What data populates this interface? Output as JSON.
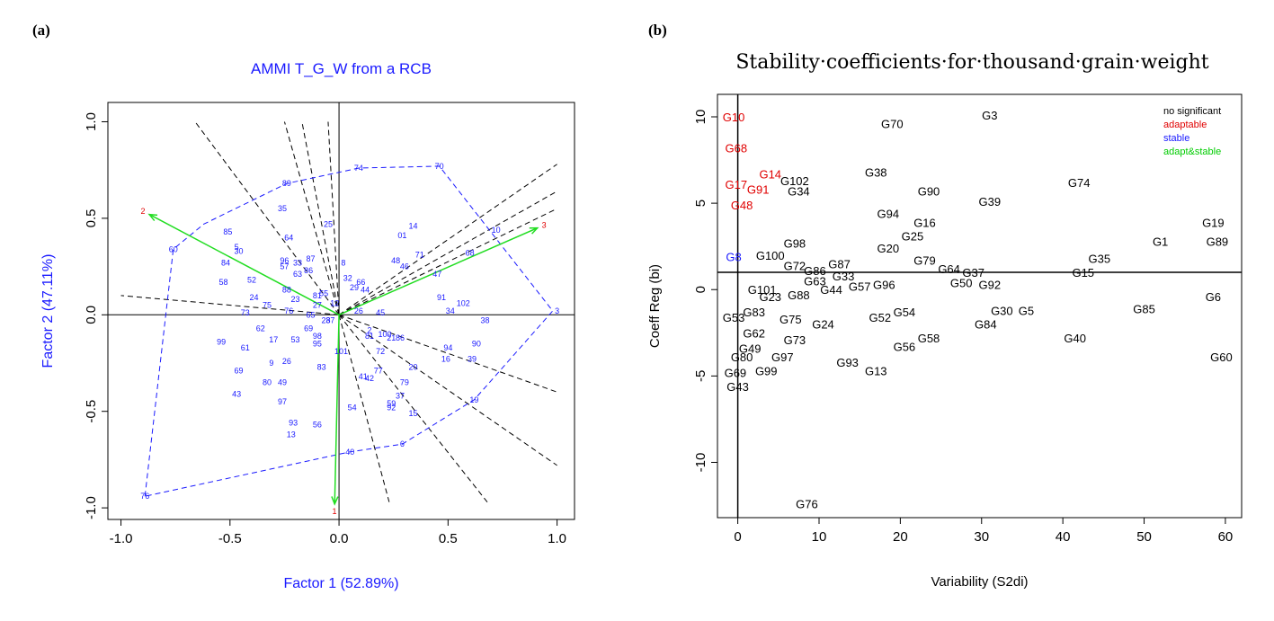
{
  "panel_labels": {
    "a": "(a)",
    "b": "(b)"
  },
  "colors": {
    "genotype": "#1a1aff",
    "environment": "#e00000",
    "vector": "#22dd22",
    "hull": "#1a1aff",
    "sector": "#000000",
    "no_significant": "#000000",
    "adaptable": "#e00000",
    "stable": "#1a1aff",
    "adapt_stable": "#00cc00"
  },
  "chart_data": [
    {
      "type": "scatter",
      "title": "AMMI T_G_W from a RCB",
      "xlabel": "Factor 1 (52.89%)",
      "ylabel": "Factor 2 (47.11%)",
      "xlim": [
        -1.06,
        1.08
      ],
      "ylim": [
        -1.06,
        1.1
      ],
      "xticks": [
        -1.0,
        -0.5,
        0.0,
        0.5,
        1.0
      ],
      "xtick_labels": [
        "-1.0",
        "-0.5",
        "0.0",
        "0.5",
        "1.0"
      ],
      "yticks": [
        -1.0,
        -0.5,
        0.0,
        0.5,
        1.0
      ],
      "ytick_labels": [
        "-1.0",
        "-0.5",
        "0.0",
        "0.5",
        "1.0"
      ],
      "environments": [
        {
          "label": "1",
          "x": -0.02,
          "y": -0.98
        },
        {
          "label": "2",
          "x": -0.87,
          "y": 0.52
        },
        {
          "label": "3",
          "x": 0.91,
          "y": 0.45
        }
      ],
      "genotypes": [
        {
          "label": "89",
          "x": -0.24,
          "y": 0.68
        },
        {
          "label": "74",
          "x": 0.09,
          "y": 0.76
        },
        {
          "label": "70",
          "x": 0.46,
          "y": 0.77
        },
        {
          "label": "35",
          "x": -0.26,
          "y": 0.55
        },
        {
          "label": "25",
          "x": -0.05,
          "y": 0.47
        },
        {
          "label": "14",
          "x": 0.34,
          "y": 0.46
        },
        {
          "label": "85",
          "x": -0.51,
          "y": 0.43
        },
        {
          "label": "64",
          "x": -0.23,
          "y": 0.4
        },
        {
          "label": "01",
          "x": 0.29,
          "y": 0.41
        },
        {
          "label": "10",
          "x": 0.72,
          "y": 0.44
        },
        {
          "label": "60",
          "x": -0.76,
          "y": 0.34
        },
        {
          "label": "5",
          "x": -0.47,
          "y": 0.35
        },
        {
          "label": "30",
          "x": -0.46,
          "y": 0.33
        },
        {
          "label": "71",
          "x": 0.37,
          "y": 0.31
        },
        {
          "label": "68",
          "x": 0.6,
          "y": 0.32
        },
        {
          "label": "84",
          "x": -0.52,
          "y": 0.27
        },
        {
          "label": "96",
          "x": -0.25,
          "y": 0.28
        },
        {
          "label": "33",
          "x": -0.19,
          "y": 0.27
        },
        {
          "label": "87",
          "x": -0.13,
          "y": 0.29
        },
        {
          "label": "8",
          "x": 0.02,
          "y": 0.27
        },
        {
          "label": "48",
          "x": 0.26,
          "y": 0.28
        },
        {
          "label": "57",
          "x": -0.25,
          "y": 0.25
        },
        {
          "label": "46",
          "x": 0.3,
          "y": 0.25
        },
        {
          "label": "63",
          "x": -0.19,
          "y": 0.21
        },
        {
          "label": "86",
          "x": -0.14,
          "y": 0.23
        },
        {
          "label": "47",
          "x": 0.45,
          "y": 0.21
        },
        {
          "label": "58",
          "x": -0.53,
          "y": 0.17
        },
        {
          "label": "52",
          "x": -0.4,
          "y": 0.18
        },
        {
          "label": "32",
          "x": 0.04,
          "y": 0.19
        },
        {
          "label": "66",
          "x": 0.1,
          "y": 0.17
        },
        {
          "label": "88",
          "x": -0.24,
          "y": 0.13
        },
        {
          "label": "29",
          "x": 0.07,
          "y": 0.14
        },
        {
          "label": "44",
          "x": 0.12,
          "y": 0.13
        },
        {
          "label": "24",
          "x": -0.39,
          "y": 0.09
        },
        {
          "label": "23",
          "x": -0.2,
          "y": 0.08
        },
        {
          "label": "81",
          "x": -0.1,
          "y": 0.1
        },
        {
          "label": "55",
          "x": -0.07,
          "y": 0.11
        },
        {
          "label": "75",
          "x": -0.33,
          "y": 0.05
        },
        {
          "label": "27",
          "x": -0.1,
          "y": 0.05
        },
        {
          "label": "12",
          "x": -0.02,
          "y": 0.06
        },
        {
          "label": "91",
          "x": 0.47,
          "y": 0.09
        },
        {
          "label": "102",
          "x": 0.57,
          "y": 0.06
        },
        {
          "label": "73",
          "x": -0.43,
          "y": 0.01
        },
        {
          "label": "76",
          "x": -0.23,
          "y": 0.02
        },
        {
          "label": "65",
          "x": -0.13,
          "y": 0.0
        },
        {
          "label": "26",
          "x": 0.09,
          "y": 0.02
        },
        {
          "label": "45",
          "x": 0.19,
          "y": 0.01
        },
        {
          "label": "34",
          "x": 0.51,
          "y": 0.02
        },
        {
          "label": "28",
          "x": -0.06,
          "y": -0.03
        },
        {
          "label": "37",
          "x": -0.04,
          "y": -0.03
        },
        {
          "label": "38",
          "x": 0.67,
          "y": -0.03
        },
        {
          "label": "62",
          "x": -0.36,
          "y": -0.07
        },
        {
          "label": "69",
          "x": -0.14,
          "y": -0.07
        },
        {
          "label": "2",
          "x": 0.14,
          "y": -0.08
        },
        {
          "label": "17",
          "x": -0.3,
          "y": -0.13
        },
        {
          "label": "53",
          "x": -0.2,
          "y": -0.13
        },
        {
          "label": "98",
          "x": -0.1,
          "y": -0.11
        },
        {
          "label": "81",
          "x": 0.14,
          "y": -0.11
        },
        {
          "label": "100",
          "x": 0.21,
          "y": -0.1
        },
        {
          "label": "21",
          "x": 0.24,
          "y": -0.12
        },
        {
          "label": "86",
          "x": 0.28,
          "y": -0.12
        },
        {
          "label": "99",
          "x": -0.54,
          "y": -0.14
        },
        {
          "label": "95",
          "x": -0.1,
          "y": -0.15
        },
        {
          "label": "90",
          "x": 0.63,
          "y": -0.15
        },
        {
          "label": "61",
          "x": -0.43,
          "y": -0.17
        },
        {
          "label": "94",
          "x": 0.5,
          "y": -0.17
        },
        {
          "label": "101",
          "x": 0.01,
          "y": -0.19
        },
        {
          "label": "72",
          "x": 0.19,
          "y": -0.19
        },
        {
          "label": "16",
          "x": 0.49,
          "y": -0.23
        },
        {
          "label": "39",
          "x": 0.61,
          "y": -0.23
        },
        {
          "label": "9",
          "x": -0.31,
          "y": -0.25
        },
        {
          "label": "26",
          "x": -0.24,
          "y": -0.24
        },
        {
          "label": "83",
          "x": -0.08,
          "y": -0.27
        },
        {
          "label": "20",
          "x": 0.34,
          "y": -0.27
        },
        {
          "label": "69",
          "x": -0.46,
          "y": -0.29
        },
        {
          "label": "77",
          "x": 0.18,
          "y": -0.29
        },
        {
          "label": "80",
          "x": -0.33,
          "y": -0.35
        },
        {
          "label": "49",
          "x": -0.26,
          "y": -0.35
        },
        {
          "label": "41",
          "x": 0.11,
          "y": -0.32
        },
        {
          "label": "42",
          "x": 0.14,
          "y": -0.33
        },
        {
          "label": "79",
          "x": 0.3,
          "y": -0.35
        },
        {
          "label": "43",
          "x": -0.47,
          "y": -0.41
        },
        {
          "label": "37",
          "x": 0.28,
          "y": -0.42
        },
        {
          "label": "97",
          "x": -0.26,
          "y": -0.45
        },
        {
          "label": "54",
          "x": 0.06,
          "y": -0.48
        },
        {
          "label": "59",
          "x": 0.24,
          "y": -0.46
        },
        {
          "label": "92",
          "x": 0.24,
          "y": -0.48
        },
        {
          "label": "15",
          "x": 0.34,
          "y": -0.51
        },
        {
          "label": "19",
          "x": 0.62,
          "y": -0.44
        },
        {
          "label": "93",
          "x": -0.21,
          "y": -0.56
        },
        {
          "label": "56",
          "x": -0.1,
          "y": -0.57
        },
        {
          "label": "13",
          "x": -0.22,
          "y": -0.62
        },
        {
          "label": "40",
          "x": 0.05,
          "y": -0.71
        },
        {
          "label": "6",
          "x": 0.29,
          "y": -0.67
        },
        {
          "label": "76",
          "x": -0.89,
          "y": -0.94
        },
        {
          "label": "3",
          "x": 1.0,
          "y": 0.02
        }
      ],
      "hull": [
        [
          -0.89,
          -0.94
        ],
        [
          -0.76,
          0.34
        ],
        [
          -0.62,
          0.47
        ],
        [
          -0.24,
          0.68
        ],
        [
          0.09,
          0.76
        ],
        [
          0.46,
          0.77
        ],
        [
          0.98,
          0.02
        ],
        [
          0.62,
          -0.44
        ],
        [
          0.29,
          -0.67
        ],
        [
          0.05,
          -0.71
        ],
        [
          -0.89,
          -0.94
        ]
      ],
      "sectors": [
        [
          -1.0,
          0.1
        ],
        [
          -0.66,
          1.0
        ],
        [
          -0.25,
          1.0
        ],
        [
          -0.05,
          1.0
        ],
        [
          -0.17,
          1.0
        ],
        [
          0.23,
          -0.97
        ],
        [
          0.68,
          -0.97
        ],
        [
          1.0,
          -0.78
        ],
        [
          1.0,
          0.64
        ],
        [
          1.0,
          0.78
        ],
        [
          1.0,
          -0.4
        ],
        [
          1.0,
          0.55
        ]
      ]
    },
    {
      "type": "scatter",
      "title": "Stability·coefficients·for·thousand·grain·weight",
      "xlabel": "Variability (S2di)",
      "ylabel": "Coeff Reg (bi)",
      "xlim": [
        -2.5,
        62
      ],
      "ylim": [
        -13.2,
        11.3
      ],
      "xticks": [
        0,
        10,
        20,
        30,
        40,
        50,
        60
      ],
      "xtick_labels": [
        "0",
        "10",
        "20",
        "30",
        "40",
        "50",
        "60"
      ],
      "yticks": [
        -10,
        -5,
        0,
        5,
        10
      ],
      "ytick_labels": [
        "-10",
        "-5",
        "0",
        "5",
        "10"
      ],
      "ref_lines": {
        "x": 0,
        "y": 1
      },
      "legend": {
        "position": "top-right",
        "entries": [
          "no significant",
          "adaptable",
          "stable",
          "adapt&stable"
        ]
      },
      "points": [
        {
          "label": "G3",
          "x": 31.0,
          "y": 10.1,
          "cls": 0
        },
        {
          "label": "G70",
          "x": 19.0,
          "y": 9.6,
          "cls": 0
        },
        {
          "label": "G10",
          "x": -0.5,
          "y": 10.0,
          "cls": 1
        },
        {
          "label": "G68",
          "x": -0.2,
          "y": 8.2,
          "cls": 1
        },
        {
          "label": "G38",
          "x": 17.0,
          "y": 6.8,
          "cls": 0
        },
        {
          "label": "G14",
          "x": 4.0,
          "y": 6.7,
          "cls": 1
        },
        {
          "label": "G102",
          "x": 7.0,
          "y": 6.3,
          "cls": 0
        },
        {
          "label": "G74",
          "x": 42.0,
          "y": 6.2,
          "cls": 0
        },
        {
          "label": "G17",
          "x": -0.2,
          "y": 6.1,
          "cls": 1
        },
        {
          "label": "G91",
          "x": 2.5,
          "y": 5.8,
          "cls": 1
        },
        {
          "label": "G34",
          "x": 7.5,
          "y": 5.7,
          "cls": 0
        },
        {
          "label": "G90",
          "x": 23.5,
          "y": 5.7,
          "cls": 0
        },
        {
          "label": "G39",
          "x": 31.0,
          "y": 5.1,
          "cls": 0
        },
        {
          "label": "G48",
          "x": 0.5,
          "y": 4.9,
          "cls": 1
        },
        {
          "label": "G94",
          "x": 18.5,
          "y": 4.4,
          "cls": 0
        },
        {
          "label": "G16",
          "x": 23.0,
          "y": 3.9,
          "cls": 0
        },
        {
          "label": "G19",
          "x": 58.5,
          "y": 3.9,
          "cls": 0
        },
        {
          "label": "G25",
          "x": 21.5,
          "y": 3.1,
          "cls": 0
        },
        {
          "label": "G1",
          "x": 52.0,
          "y": 2.8,
          "cls": 0
        },
        {
          "label": "G89",
          "x": 59.0,
          "y": 2.8,
          "cls": 0
        },
        {
          "label": "G98",
          "x": 7.0,
          "y": 2.7,
          "cls": 0
        },
        {
          "label": "G20",
          "x": 18.5,
          "y": 2.4,
          "cls": 0
        },
        {
          "label": "G8",
          "x": -0.5,
          "y": 1.9,
          "cls": 2
        },
        {
          "label": "G100",
          "x": 4.0,
          "y": 2.0,
          "cls": 0
        },
        {
          "label": "G79",
          "x": 23.0,
          "y": 1.7,
          "cls": 0
        },
        {
          "label": "G35",
          "x": 44.5,
          "y": 1.8,
          "cls": 0
        },
        {
          "label": "G72",
          "x": 7.0,
          "y": 1.4,
          "cls": 0
        },
        {
          "label": "G87",
          "x": 12.5,
          "y": 1.5,
          "cls": 0
        },
        {
          "label": "G64",
          "x": 26.0,
          "y": 1.2,
          "cls": 0
        },
        {
          "label": "G15",
          "x": 42.5,
          "y": 1.0,
          "cls": 0
        },
        {
          "label": "G86",
          "x": 9.5,
          "y": 1.1,
          "cls": 0
        },
        {
          "label": "G37",
          "x": 29.0,
          "y": 1.0,
          "cls": 0
        },
        {
          "label": "G33",
          "x": 13.0,
          "y": 0.8,
          "cls": 0
        },
        {
          "label": "G63",
          "x": 9.5,
          "y": 0.5,
          "cls": 0
        },
        {
          "label": "G50",
          "x": 27.5,
          "y": 0.4,
          "cls": 0
        },
        {
          "label": "G92",
          "x": 31.0,
          "y": 0.3,
          "cls": 0
        },
        {
          "label": "G96",
          "x": 18.0,
          "y": 0.3,
          "cls": 0
        },
        {
          "label": "G57",
          "x": 15.0,
          "y": 0.2,
          "cls": 0
        },
        {
          "label": "G44",
          "x": 11.5,
          "y": 0.0,
          "cls": 0
        },
        {
          "label": "G101",
          "x": 3.0,
          "y": 0.0,
          "cls": 0
        },
        {
          "label": "G6",
          "x": 58.5,
          "y": -0.4,
          "cls": 0
        },
        {
          "label": "G23",
          "x": 4.0,
          "y": -0.4,
          "cls": 0
        },
        {
          "label": "G88",
          "x": 7.5,
          "y": -0.3,
          "cls": 0
        },
        {
          "label": "G85",
          "x": 50.0,
          "y": -1.1,
          "cls": 0
        },
        {
          "label": "G30",
          "x": 32.5,
          "y": -1.2,
          "cls": 0
        },
        {
          "label": "G5",
          "x": 35.5,
          "y": -1.2,
          "cls": 0
        },
        {
          "label": "G54",
          "x": 20.5,
          "y": -1.3,
          "cls": 0
        },
        {
          "label": "G83",
          "x": 2.0,
          "y": -1.3,
          "cls": 0
        },
        {
          "label": "G53",
          "x": -0.5,
          "y": -1.6,
          "cls": 0
        },
        {
          "label": "G52",
          "x": 17.5,
          "y": -1.6,
          "cls": 0
        },
        {
          "label": "G75",
          "x": 6.5,
          "y": -1.7,
          "cls": 0
        },
        {
          "label": "G24",
          "x": 10.5,
          "y": -2.0,
          "cls": 0
        },
        {
          "label": "G84",
          "x": 30.5,
          "y": -2.0,
          "cls": 0
        },
        {
          "label": "G62",
          "x": 2.0,
          "y": -2.5,
          "cls": 0
        },
        {
          "label": "G73",
          "x": 7.0,
          "y": -2.9,
          "cls": 0
        },
        {
          "label": "G58",
          "x": 23.5,
          "y": -2.8,
          "cls": 0
        },
        {
          "label": "G40",
          "x": 41.5,
          "y": -2.8,
          "cls": 0
        },
        {
          "label": "G56",
          "x": 20.5,
          "y": -3.3,
          "cls": 0
        },
        {
          "label": "G49",
          "x": 1.5,
          "y": -3.4,
          "cls": 0
        },
        {
          "label": "G60",
          "x": 59.5,
          "y": -3.9,
          "cls": 0
        },
        {
          "label": "G80",
          "x": 0.5,
          "y": -3.9,
          "cls": 0
        },
        {
          "label": "G97",
          "x": 5.5,
          "y": -3.9,
          "cls": 0
        },
        {
          "label": "G93",
          "x": 13.5,
          "y": -4.2,
          "cls": 0
        },
        {
          "label": "G99",
          "x": 3.5,
          "y": -4.7,
          "cls": 0
        },
        {
          "label": "G13",
          "x": 17.0,
          "y": -4.7,
          "cls": 0
        },
        {
          "label": "G69",
          "x": -0.3,
          "y": -4.8,
          "cls": 0
        },
        {
          "label": "G43",
          "x": 0.0,
          "y": -5.6,
          "cls": 0
        },
        {
          "label": "G76",
          "x": 8.5,
          "y": -12.4,
          "cls": 0
        }
      ]
    }
  ]
}
